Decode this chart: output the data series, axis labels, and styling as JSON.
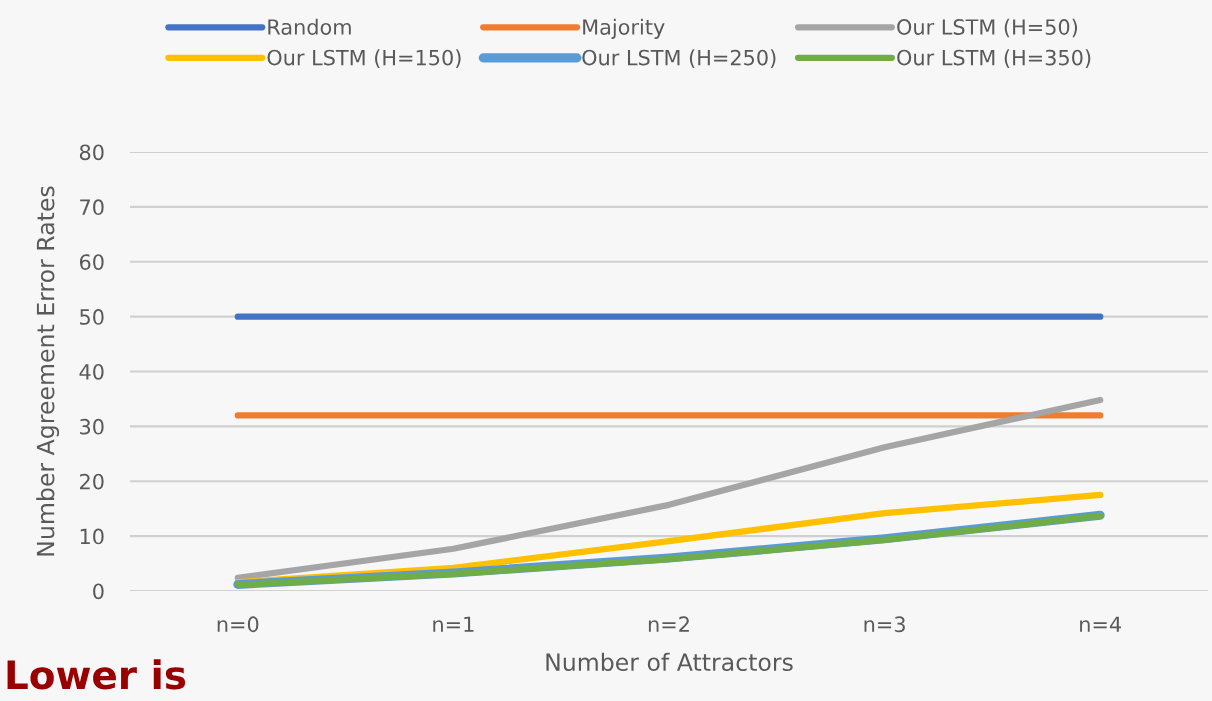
{
  "chart_data": {
    "type": "line",
    "xlabel": "Number of Attractors",
    "ylabel": "Number Agreement Error Rates",
    "categories": [
      "n=0",
      "n=1",
      "n=2",
      "n=3",
      "n=4"
    ],
    "series": [
      {
        "name": "Random",
        "color": "#4472c4",
        "values": [
          50,
          50,
          50,
          50,
          50
        ]
      },
      {
        "name": "Majority",
        "color": "#ed7d31",
        "values": [
          32,
          32,
          32,
          32,
          32
        ]
      },
      {
        "name": "Our LSTM (H=50)",
        "color": "#a5a5a5",
        "values": [
          2.4,
          7.7,
          15.7,
          26.2,
          34.8
        ]
      },
      {
        "name": "Our LSTM (H=150)",
        "color": "#ffc000",
        "values": [
          1.6,
          4.2,
          9.1,
          14.2,
          17.5
        ]
      },
      {
        "name": "Our LSTM (H=250)",
        "color": "#5b9bd5",
        "values": [
          1.2,
          3.3,
          6.0,
          9.5,
          13.8
        ]
      },
      {
        "name": "Our LSTM (H=350)",
        "color": "#70ad47",
        "values": [
          1.1,
          3.1,
          5.8,
          9.3,
          13.7
        ]
      }
    ],
    "ylim": [
      0,
      80
    ],
    "yticks": [
      0,
      10,
      20,
      30,
      40,
      50,
      60,
      70,
      80
    ],
    "grid": "y",
    "legend": "top",
    "marker": "none",
    "line_style": "solid",
    "annotations": [
      "Lower is"
    ]
  }
}
